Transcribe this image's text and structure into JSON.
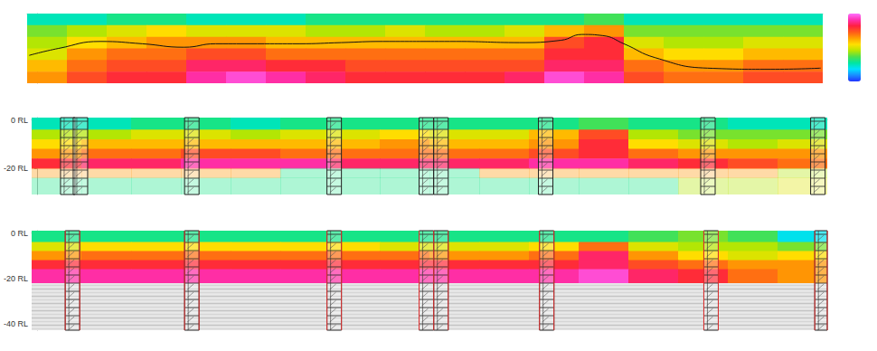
{
  "chart_data": [
    {
      "type": "heatmap",
      "xlim": [
        -10,
        750
      ],
      "ylim": [
        -6,
        0
      ],
      "xticks": [
        0,
        100,
        200,
        300,
        400,
        500,
        600,
        700
      ],
      "tick_labels": false,
      "x_edges": [
        -10,
        28,
        66,
        104,
        142,
        180,
        218,
        256,
        294,
        332,
        370,
        408,
        446,
        484,
        522,
        560,
        598,
        636,
        674,
        712,
        750
      ],
      "y_edges": [
        0,
        -1,
        -2,
        -3,
        -4,
        -5,
        -6
      ],
      "cells": [
        [
          2.5,
          2.5,
          3,
          3,
          2.5,
          2.5,
          2.5,
          3,
          3,
          3,
          3,
          3,
          3,
          3,
          3.5,
          2.5,
          2.5,
          2.5,
          2.5,
          2.5
        ],
        [
          4,
          4.5,
          5,
          5.5,
          5,
          5,
          5,
          4.5,
          4.5,
          5,
          4.5,
          4.5,
          5,
          6,
          6.5,
          4,
          4,
          4,
          4,
          4
        ],
        [
          4.5,
          5.5,
          6,
          6.5,
          6.5,
          6.5,
          6,
          6,
          6,
          6,
          6,
          6,
          6,
          7.5,
          8,
          5,
          4.5,
          4.5,
          5,
          5
        ],
        [
          5,
          6.5,
          7,
          7,
          7.5,
          7.5,
          7,
          7,
          7,
          7,
          7,
          7,
          7,
          8,
          8,
          6,
          5.5,
          5.5,
          6,
          6
        ],
        [
          6,
          7,
          7.5,
          7.5,
          8.5,
          8.5,
          8,
          8,
          7.5,
          7.5,
          7.5,
          7.5,
          7.5,
          8.5,
          8.5,
          7,
          6.5,
          6.5,
          7,
          7
        ],
        [
          6.5,
          7.5,
          8,
          8,
          9,
          9.5,
          9,
          8.5,
          8,
          8,
          8,
          8,
          8.5,
          9.5,
          9,
          7.5,
          7,
          7,
          7.5,
          7.5
        ]
      ],
      "contour": {
        "x": [
          -8,
          20,
          60,
          100,
          140,
          170,
          210,
          250,
          290,
          330,
          400,
          460,
          500,
          520,
          540,
          560,
          590,
          640,
          700,
          748
        ],
        "y": [
          -3.6,
          -3.0,
          -2.4,
          -2.6,
          -2.9,
          -2.6,
          -2.6,
          -2.6,
          -2.5,
          -2.4,
          -2.4,
          -2.5,
          -2.3,
          -1.8,
          -1.9,
          -2.6,
          -3.8,
          -4.7,
          -4.8,
          -4.7
        ]
      },
      "colorbar": {
        "range": [
          0,
          10
        ]
      }
    },
    {
      "type": "heatmap",
      "xlim": [
        -5,
        755
      ],
      "ylim": [
        -31,
        1
      ],
      "yticks": [
        {
          "value": 0,
          "label": "0 RL"
        },
        {
          "value": -20,
          "label": "-20 RL"
        }
      ],
      "tick_labels": "y",
      "x_edges": [
        -5,
        42.5,
        90,
        137.5,
        185,
        232.5,
        280,
        327.5,
        375,
        422.5,
        470,
        517.5,
        565,
        612.5,
        660,
        707.5,
        755
      ],
      "y_edges": [
        1,
        -4,
        -8,
        -12,
        -16,
        -20,
        -24,
        -31
      ],
      "model_bottom": -20,
      "cells": [
        [
          2.5,
          2.5,
          3,
          3,
          2.5,
          3,
          3,
          3,
          3,
          3,
          3,
          3.5,
          3,
          3,
          2.5,
          2.5
        ],
        [
          4.5,
          4.5,
          5,
          5,
          4.5,
          5,
          5,
          5.5,
          5,
          5,
          6,
          7.5,
          4.5,
          4,
          4,
          4
        ],
        [
          5.5,
          6,
          6,
          6,
          6,
          6,
          6,
          6.5,
          6,
          6,
          6.5,
          8,
          5.5,
          5,
          4.5,
          5
        ],
        [
          6.5,
          7,
          7,
          7.5,
          7.5,
          7,
          7,
          7,
          7,
          7,
          7.5,
          8,
          7,
          6.5,
          6.5,
          6.5
        ],
        [
          8,
          8.5,
          8.5,
          9,
          9,
          9,
          8.5,
          8.5,
          8.5,
          8.5,
          9,
          9,
          8.5,
          8,
          7.5,
          7
        ],
        [
          6.5,
          6.5,
          6.5,
          6.5,
          6.5,
          3,
          3,
          3,
          3,
          6.5,
          6.5,
          6.5,
          6.5,
          6.5,
          6.5,
          4.5
        ],
        [
          3,
          3,
          3,
          3,
          3,
          3,
          3,
          3,
          3,
          3,
          3,
          3,
          3,
          4.5,
          4.5,
          5
        ]
      ],
      "boreholes": [
        29.5,
        41.6,
        148,
        284,
        372,
        386,
        486,
        641,
        746
      ]
    },
    {
      "type": "heatmap",
      "xlim": [
        -5,
        755
      ],
      "ylim": [
        -43,
        1
      ],
      "yticks": [
        {
          "value": 0,
          "label": "0 RL"
        },
        {
          "value": -20,
          "label": "-20 RL"
        },
        {
          "value": -40,
          "label": "-40 RL"
        }
      ],
      "tick_labels": "y",
      "x_edges": [
        -5,
        42.5,
        90,
        137.5,
        185,
        232.5,
        280,
        327.5,
        375,
        422.5,
        470,
        517.5,
        565,
        612.5,
        660,
        707.5,
        755
      ],
      "y_edges": [
        1,
        -4,
        -8,
        -12,
        -16,
        -22
      ],
      "model_bottom": -22,
      "cells": [
        [
          3,
          3,
          3,
          3,
          3,
          3,
          3,
          3,
          3,
          3,
          3,
          3,
          3.5,
          4,
          3.5,
          2
        ],
        [
          5,
          5.5,
          5.5,
          5.5,
          5.5,
          5.5,
          5.5,
          5,
          5,
          5,
          5.5,
          7,
          5,
          4.5,
          4.5,
          4
        ],
        [
          6.5,
          7,
          7,
          7,
          7,
          7,
          7,
          7,
          6.5,
          6.5,
          7,
          8.5,
          6.5,
          5.5,
          5,
          5.5
        ],
        [
          8,
          8,
          8,
          8,
          8,
          8,
          8,
          8,
          8,
          8,
          8,
          8.5,
          7.5,
          7,
          6.5,
          6.5
        ],
        [
          9,
          9,
          9,
          9,
          9,
          9,
          9,
          9,
          9,
          9,
          9,
          9.5,
          8.5,
          8,
          7,
          6.5
        ]
      ],
      "boreholes": [
        34,
        148,
        284,
        372,
        386,
        487,
        644,
        750
      ]
    }
  ]
}
